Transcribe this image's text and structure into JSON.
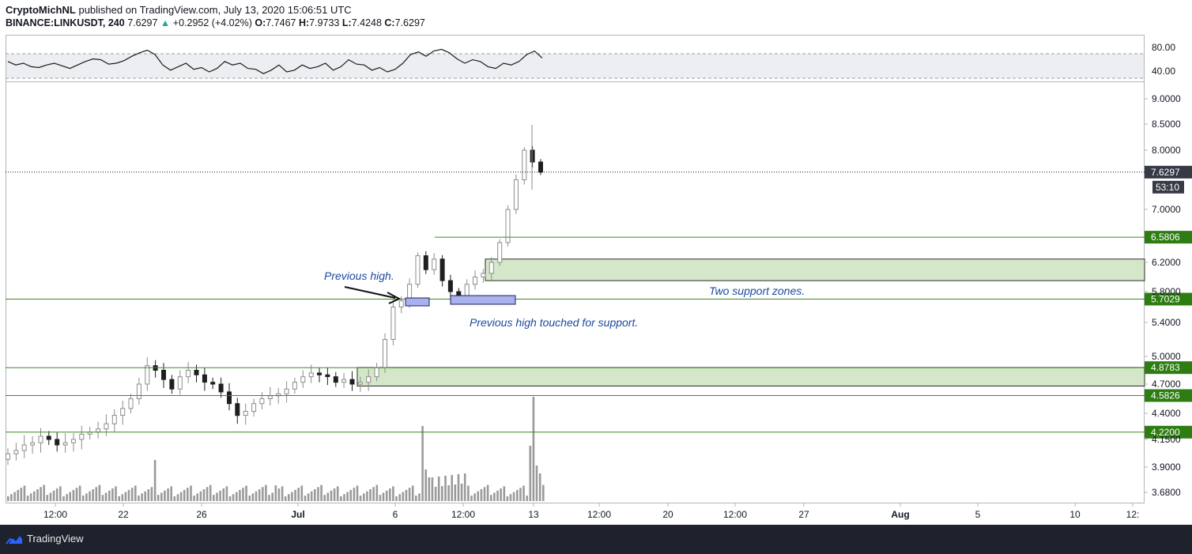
{
  "header": {
    "author": "CryptoMichNL",
    "published": "published on TradingView.com, July 13, 2020 15:06:51 UTC",
    "symbol": "BINANCE:LINKUSDT, 240",
    "last": "7.6297",
    "change_arrow": "▲",
    "change": "+0.2952 (+4.02%)",
    "o_label": "O:",
    "o": "7.7467",
    "h_label": "H:",
    "h": "7.9733",
    "l_label": "L:",
    "l": "7.4248",
    "c_label": "C:",
    "c": "7.6297"
  },
  "annotations": {
    "previous_high": "Previous high.",
    "two_support": "Two support zones.",
    "touched": "Previous high touched for support."
  },
  "footer": {
    "brand": "TradingView"
  },
  "colors": {
    "candle": "#8c8c8c",
    "candle_dark": "#1f1f1f",
    "level_line": "#3b8a1a",
    "level_badge": "#2e7d12",
    "zone_fill": "#d4e7c8",
    "blue_box": "#a9b1ee",
    "annotation": "#1a4aa0",
    "price_badge": "#363a45"
  },
  "chart_data": {
    "type": "candlestick",
    "symbol": "BINANCE:LINKUSDT",
    "timeframe": "240",
    "y_axis_ticks": [
      "9.0000",
      "8.5000",
      "8.0000",
      "7.0000",
      "6.2000",
      "5.8000",
      "5.4000",
      "5.0000",
      "4.7000",
      "4.4000",
      "4.1500",
      "3.9000",
      "3.6800"
    ],
    "x_axis_ticks": [
      "12:00",
      "22",
      "26",
      "Jul",
      "6",
      "12:00",
      "13",
      "12:00",
      "20",
      "12:00",
      "27",
      "Aug",
      "5",
      "10",
      "12:"
    ],
    "current_price": "7.6297",
    "countdown": "53:10",
    "horizontal_levels": [
      "6.5806",
      "5.7029",
      "4.8783",
      "4.5826",
      "4.2200"
    ],
    "support_zones": [
      [
        5.95,
        6.25
      ],
      [
        4.68,
        4.88
      ]
    ],
    "rsi": {
      "ticks": [
        "80.00",
        "40.00"
      ],
      "band": [
        30,
        70
      ]
    },
    "close_path": [
      4.02,
      4.05,
      4.1,
      4.12,
      4.18,
      4.15,
      4.1,
      4.12,
      4.15,
      4.2,
      4.22,
      4.25,
      4.3,
      4.38,
      4.45,
      4.55,
      4.7,
      4.9,
      4.85,
      4.75,
      4.65,
      4.78,
      4.85,
      4.8,
      4.72,
      4.7,
      4.62,
      4.5,
      4.38,
      4.42,
      4.5,
      4.55,
      4.58,
      4.6,
      4.65,
      4.72,
      4.78,
      4.82,
      4.8,
      4.78,
      4.72,
      4.75,
      4.7,
      4.72,
      4.78,
      4.88,
      5.2,
      5.6,
      5.68,
      5.9,
      6.3,
      6.1,
      6.25,
      5.95,
      5.8,
      5.7,
      5.9,
      6.0,
      6.05,
      6.2,
      6.5,
      7.0,
      7.5,
      8.0,
      7.8,
      7.63
    ],
    "volume_spikes": [
      "23",
      "6",
      "13"
    ]
  }
}
